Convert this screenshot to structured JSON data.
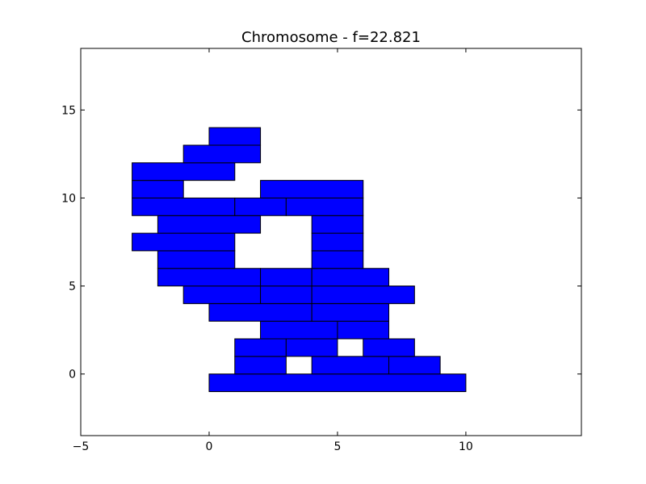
{
  "chart_data": {
    "type": "rectangles",
    "title": "Chromosome - f=22.821",
    "xlabel": "",
    "ylabel": "",
    "xlim": [
      -5,
      14.5
    ],
    "ylim": [
      -3.5,
      18.5
    ],
    "x_ticks": [
      -5,
      0,
      5,
      10
    ],
    "x_tick_labels": [
      "−5",
      "0",
      "5",
      "10"
    ],
    "y_ticks": [
      0,
      5,
      10,
      15
    ],
    "y_tick_labels": [
      "0",
      "5",
      "10",
      "15"
    ],
    "grid": false,
    "fill_color": "#0000ff",
    "edge_color": "#000000",
    "rectangles": [
      {
        "x0": 0,
        "x1": 10,
        "y0": -1,
        "y1": 0
      },
      {
        "x0": 1,
        "x1": 3,
        "y0": 0,
        "y1": 1
      },
      {
        "x0": 4,
        "x1": 7,
        "y0": 0,
        "y1": 1
      },
      {
        "x0": 7,
        "x1": 9,
        "y0": 0,
        "y1": 1
      },
      {
        "x0": 1,
        "x1": 3,
        "y0": 1,
        "y1": 2
      },
      {
        "x0": 3,
        "x1": 5,
        "y0": 1,
        "y1": 2
      },
      {
        "x0": 6,
        "x1": 8,
        "y0": 1,
        "y1": 2
      },
      {
        "x0": 2,
        "x1": 5,
        "y0": 2,
        "y1": 3
      },
      {
        "x0": 5,
        "x1": 7,
        "y0": 2,
        "y1": 3
      },
      {
        "x0": 0,
        "x1": 4,
        "y0": 3,
        "y1": 4
      },
      {
        "x0": 4,
        "x1": 7,
        "y0": 3,
        "y1": 4
      },
      {
        "x0": -1,
        "x1": 2,
        "y0": 4,
        "y1": 5
      },
      {
        "x0": 2,
        "x1": 4,
        "y0": 4,
        "y1": 5
      },
      {
        "x0": 4,
        "x1": 8,
        "y0": 4,
        "y1": 5
      },
      {
        "x0": -2,
        "x1": 2,
        "y0": 5,
        "y1": 6
      },
      {
        "x0": 2,
        "x1": 4,
        "y0": 5,
        "y1": 6
      },
      {
        "x0": 4,
        "x1": 7,
        "y0": 5,
        "y1": 6
      },
      {
        "x0": -2,
        "x1": 1,
        "y0": 6,
        "y1": 7
      },
      {
        "x0": 4,
        "x1": 6,
        "y0": 6,
        "y1": 7
      },
      {
        "x0": -3,
        "x1": 1,
        "y0": 7,
        "y1": 8
      },
      {
        "x0": 4,
        "x1": 6,
        "y0": 7,
        "y1": 8
      },
      {
        "x0": -2,
        "x1": 2,
        "y0": 8,
        "y1": 9
      },
      {
        "x0": 4,
        "x1": 6,
        "y0": 8,
        "y1": 9
      },
      {
        "x0": -3,
        "x1": 1,
        "y0": 9,
        "y1": 10
      },
      {
        "x0": 1,
        "x1": 3,
        "y0": 9,
        "y1": 10
      },
      {
        "x0": 3,
        "x1": 6,
        "y0": 9,
        "y1": 10
      },
      {
        "x0": -3,
        "x1": -1,
        "y0": 10,
        "y1": 11
      },
      {
        "x0": 2,
        "x1": 6,
        "y0": 10,
        "y1": 11
      },
      {
        "x0": -3,
        "x1": 1,
        "y0": 11,
        "y1": 12
      },
      {
        "x0": -1,
        "x1": 2,
        "y0": 12,
        "y1": 13
      },
      {
        "x0": 0,
        "x1": 2,
        "y0": 13,
        "y1": 14
      }
    ]
  }
}
